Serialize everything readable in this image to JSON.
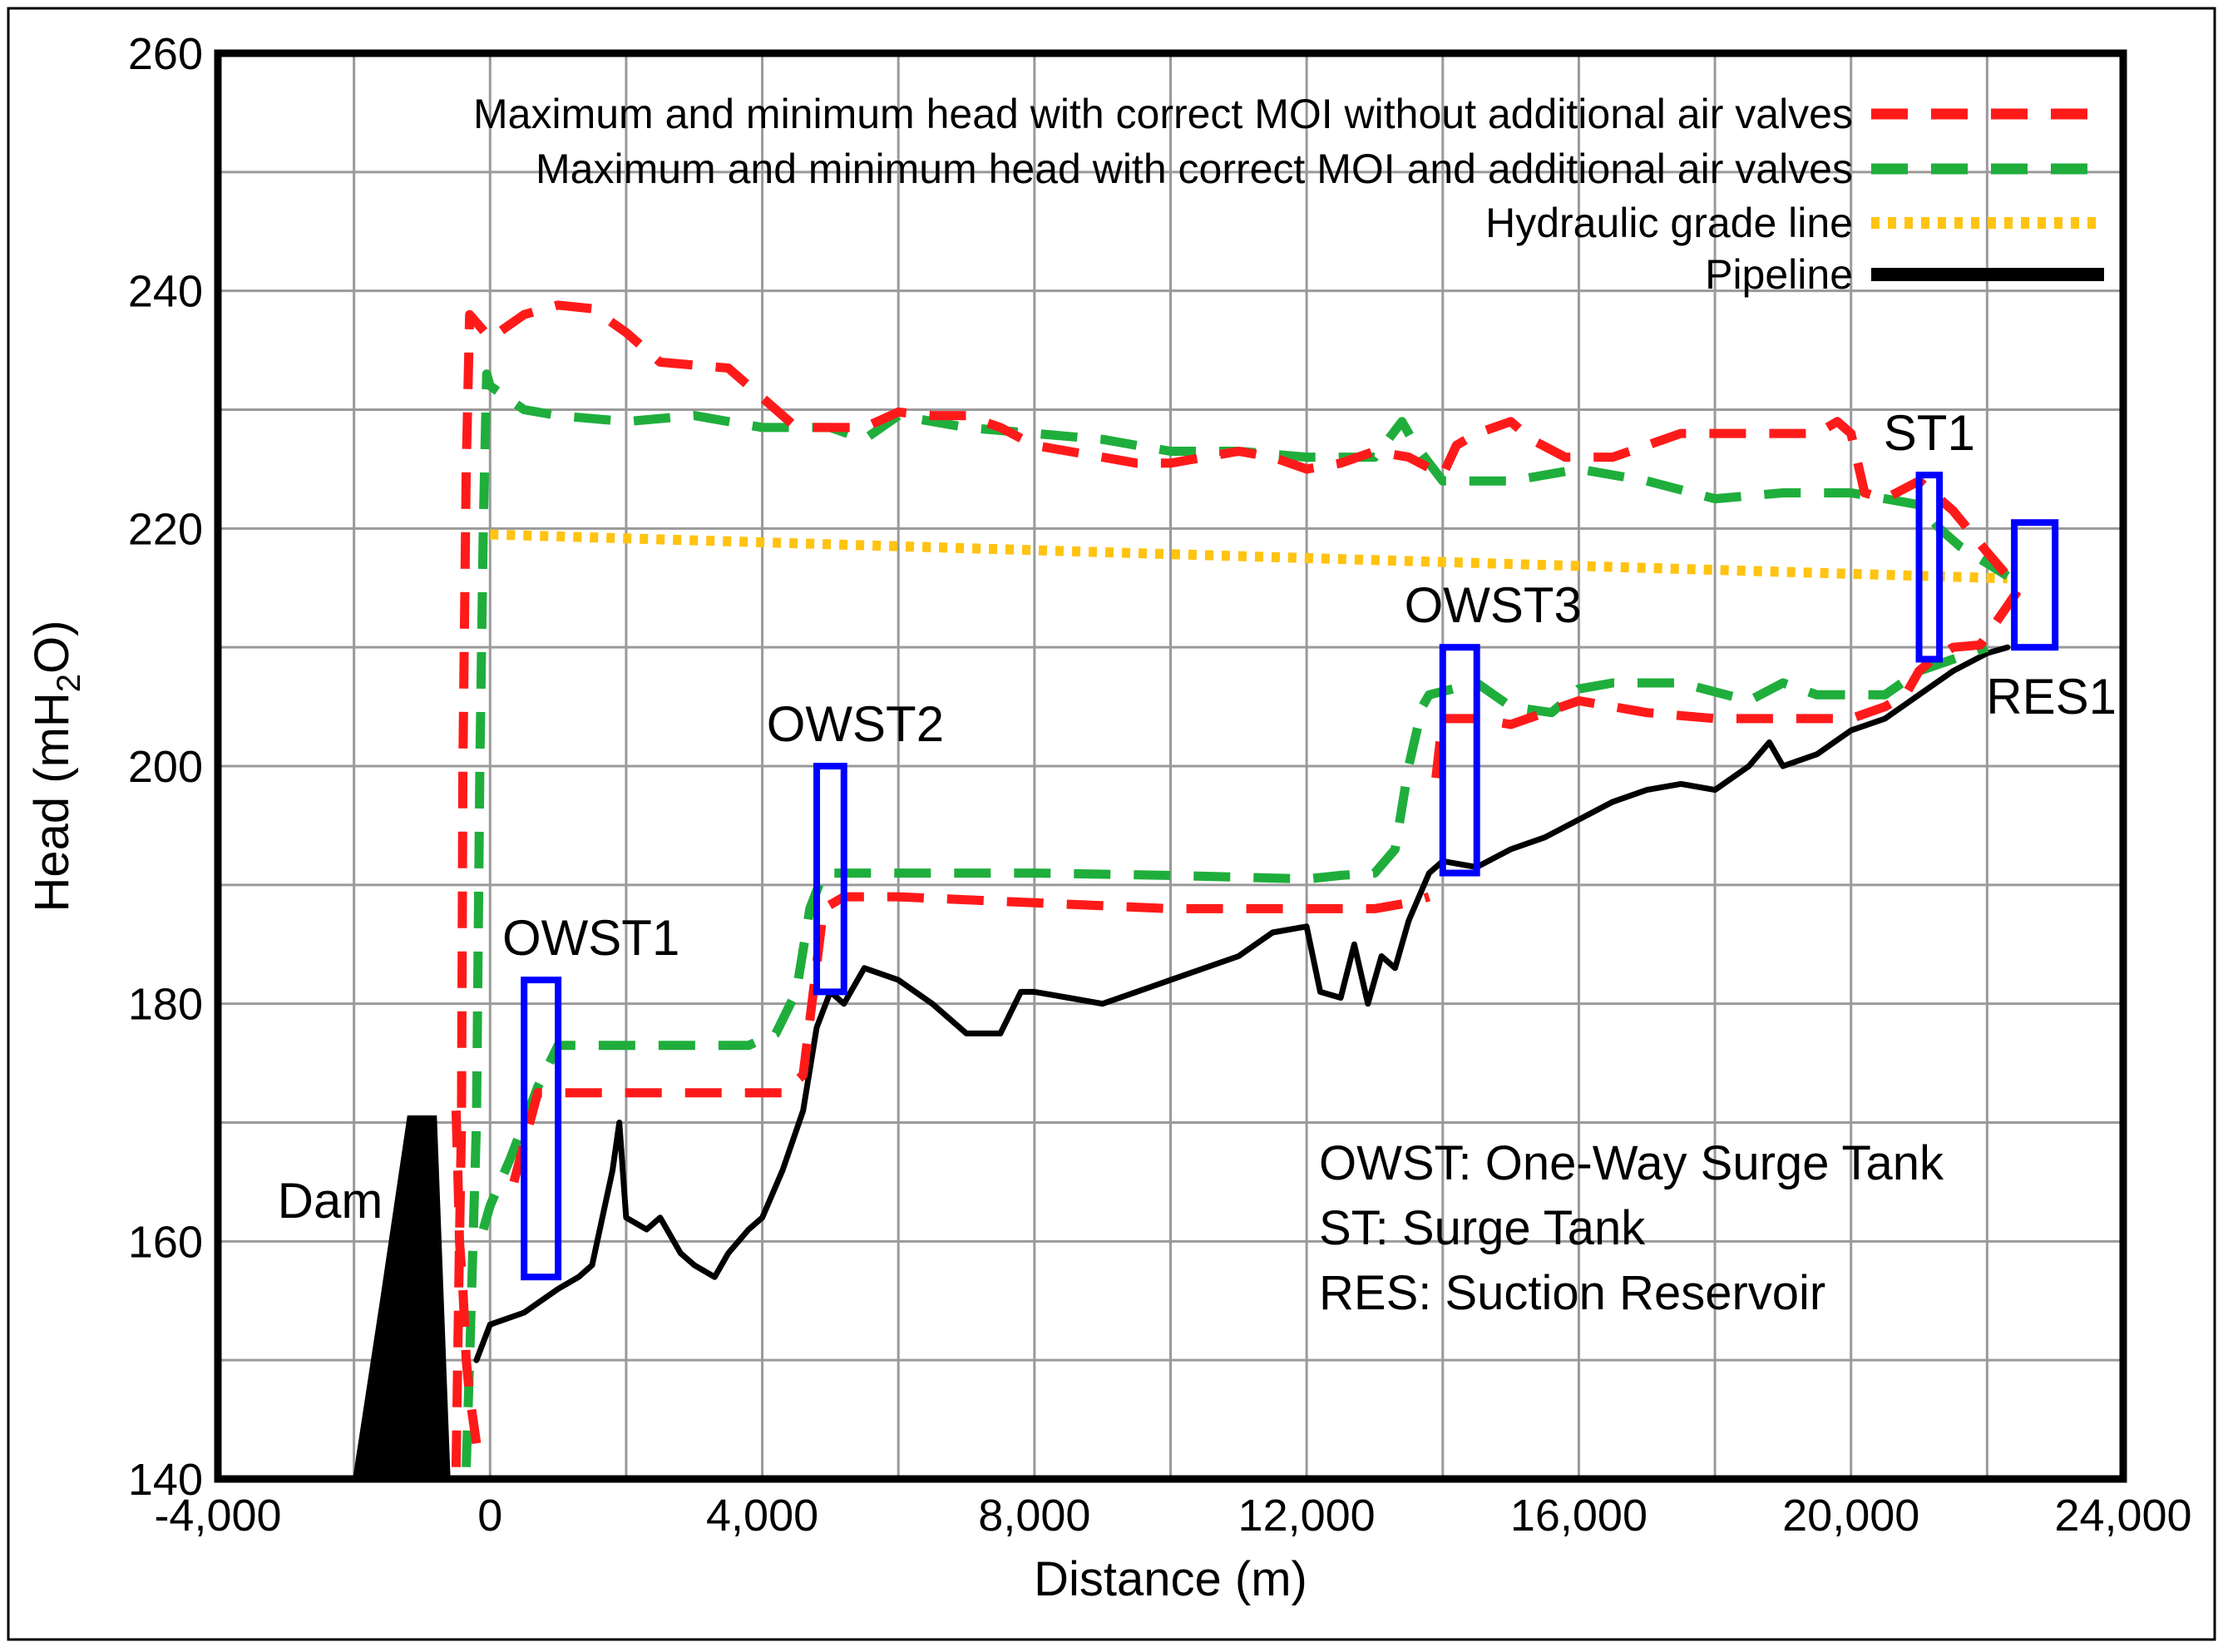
{
  "chart_data": {
    "type": "line",
    "xlabel": "Distance (m)",
    "ylabel_main": "Head (mH",
    "ylabel_sub": "2",
    "ylabel_end": "O)",
    "xlim": [
      -4000,
      24000
    ],
    "ylim": [
      140,
      260
    ],
    "x_ticks": [
      -4000,
      0,
      4000,
      8000,
      12000,
      16000,
      20000,
      24000
    ],
    "x_tick_labels": [
      "-4,000",
      "0",
      "4,000",
      "8,000",
      "12,000",
      "16,000",
      "20,000",
      "24,000"
    ],
    "y_ticks": [
      140,
      160,
      180,
      200,
      220,
      240,
      260
    ],
    "y_tick_labels": [
      "140",
      "160",
      "180",
      "200",
      "220",
      "240",
      "260"
    ],
    "x_grid_step": 2000,
    "y_grid_step": 10,
    "grid": true,
    "legend_position": "top-right",
    "series": [
      {
        "name": "Maximum and minimum head with correct MOI without additional air valves",
        "color": "#ff1a1a",
        "style": "dashed",
        "segments": [
          [
            [
              -500,
              141
            ],
            [
              -450,
              160
            ],
            [
              -420,
              170
            ],
            [
              -400,
              200
            ],
            [
              -350,
              225
            ],
            [
              -300,
              238
            ],
            [
              0,
              236
            ],
            [
              500,
              238
            ],
            [
              1000,
              238.8
            ],
            [
              1500,
              238.5
            ],
            [
              2000,
              236.5
            ],
            [
              2500,
              234
            ],
            [
              3500,
              233.5
            ],
            [
              4000,
              231
            ],
            [
              4500,
              228.5
            ],
            [
              5000,
              228.5
            ],
            [
              5500,
              228.5
            ],
            [
              6000,
              229.8
            ],
            [
              6500,
              229.5
            ],
            [
              7000,
              229.5
            ],
            [
              7500,
              228.5
            ],
            [
              8000,
              227
            ],
            [
              8500,
              226.5
            ],
            [
              9000,
              226
            ],
            [
              9500,
              225.5
            ],
            [
              10000,
              225.5
            ],
            [
              10500,
              226
            ],
            [
              11000,
              226.5
            ],
            [
              11500,
              226
            ],
            [
              12000,
              225
            ],
            [
              12500,
              225.5
            ],
            [
              13000,
              226.5
            ],
            [
              13500,
              226
            ],
            [
              14000,
              224.5
            ],
            [
              14200,
              227
            ],
            [
              14500,
              228
            ],
            [
              15000,
              229
            ],
            [
              15300,
              227.5
            ],
            [
              15800,
              226
            ],
            [
              16500,
              226
            ],
            [
              17000,
              227
            ],
            [
              17500,
              228
            ],
            [
              18500,
              228
            ],
            [
              19500,
              228
            ],
            [
              19800,
              229
            ],
            [
              20000,
              228
            ],
            [
              20200,
              223
            ],
            [
              20500,
              222.5
            ],
            [
              21000,
              224
            ],
            [
              21500,
              221.5
            ],
            [
              22000,
              218
            ],
            [
              22300,
              216
            ]
          ],
          [
            [
              -500,
              171
            ],
            [
              -470,
              165
            ],
            [
              -450,
              160
            ],
            [
              -400,
              156
            ],
            [
              -350,
              150
            ],
            [
              -300,
              147
            ],
            [
              -250,
              145
            ],
            [
              -200,
              143
            ]
          ],
          [
            [
              350,
              165
            ],
            [
              700,
              172.5
            ],
            [
              1500,
              172.5
            ],
            [
              2500,
              172.5
            ],
            [
              3500,
              172.5
            ],
            [
              4300,
              172.5
            ],
            [
              4600,
              174
            ],
            [
              4900,
              188
            ],
            [
              5200,
              189
            ],
            [
              6000,
              189
            ],
            [
              8000,
              188.5
            ],
            [
              10000,
              188
            ],
            [
              12000,
              188
            ],
            [
              13000,
              188
            ],
            [
              13500,
              188.5
            ],
            [
              13800,
              189
            ]
          ],
          [
            [
              13900,
              199
            ],
            [
              14000,
              204
            ],
            [
              14500,
              204
            ],
            [
              15000,
              203.5
            ],
            [
              16000,
              205.5
            ],
            [
              17000,
              204.5
            ],
            [
              18000,
              204
            ],
            [
              19000,
              204
            ],
            [
              20000,
              204
            ],
            [
              20500,
              205
            ],
            [
              20800,
              206
            ],
            [
              21000,
              208
            ],
            [
              21200,
              209
            ],
            [
              21500,
              210
            ],
            [
              21900,
              210.2
            ],
            [
              22300,
              213.5
            ],
            [
              22600,
              216
            ]
          ]
        ]
      },
      {
        "name": "Maximum and minimum head with correct MOI and additional air valves",
        "color": "#1fae3c",
        "style": "dashed",
        "segments": [
          [
            [
              -350,
              141
            ],
            [
              -300,
              150
            ],
            [
              -200,
              170
            ],
            [
              -150,
              200
            ],
            [
              -100,
              220
            ],
            [
              -50,
              233
            ],
            [
              0,
              232
            ],
            [
              500,
              230
            ],
            [
              1000,
              229.5
            ],
            [
              2000,
              229
            ],
            [
              3000,
              229.5
            ],
            [
              4000,
              228.5
            ],
            [
              5000,
              228.5
            ],
            [
              5500,
              227.5
            ],
            [
              6000,
              229.5
            ],
            [
              7000,
              228.5
            ],
            [
              8000,
              228
            ],
            [
              9000,
              227.5
            ],
            [
              10000,
              226.5
            ],
            [
              11000,
              226.5
            ],
            [
              12000,
              226
            ],
            [
              13000,
              226
            ],
            [
              13400,
              229
            ],
            [
              13600,
              227
            ],
            [
              14000,
              224
            ],
            [
              14500,
              224
            ],
            [
              15000,
              224
            ],
            [
              16000,
              225
            ],
            [
              17000,
              224
            ],
            [
              18000,
              222.5
            ],
            [
              19000,
              223
            ],
            [
              20000,
              223
            ],
            [
              20500,
              222.5
            ],
            [
              21000,
              222
            ],
            [
              21300,
              220
            ],
            [
              21600,
              218.5
            ],
            [
              22300,
              216
            ]
          ],
          [
            [
              -100,
              161
            ],
            [
              0,
              163
            ],
            [
              300,
              167
            ],
            [
              700,
              173
            ],
            [
              1000,
              176.5
            ],
            [
              2000,
              176.5
            ],
            [
              3000,
              176.5
            ],
            [
              3800,
              176.5
            ],
            [
              4200,
              177.5
            ],
            [
              4500,
              181
            ],
            [
              4700,
              188
            ],
            [
              4900,
              191
            ],
            [
              6000,
              191
            ],
            [
              8000,
              191
            ],
            [
              10000,
              190.8
            ],
            [
              12000,
              190.5
            ],
            [
              12500,
              190.8
            ],
            [
              13000,
              191
            ],
            [
              13300,
              193
            ],
            [
              13500,
              200
            ],
            [
              13700,
              205
            ],
            [
              13800,
              206
            ],
            [
              14500,
              207
            ],
            [
              15000,
              205
            ],
            [
              15600,
              204.5
            ],
            [
              16000,
              206.5
            ],
            [
              16500,
              207
            ],
            [
              17500,
              207
            ],
            [
              18500,
              205.5
            ],
            [
              19000,
              207
            ],
            [
              19500,
              206
            ],
            [
              20500,
              206
            ],
            [
              21000,
              208
            ],
            [
              21500,
              209
            ],
            [
              22000,
              210
            ]
          ]
        ]
      },
      {
        "name": "Hydraulic grade line",
        "color": "#ffc312",
        "style": "dotted",
        "segments": [
          [
            [
              0,
              219.5
            ],
            [
              22300,
              215.8
            ]
          ]
        ]
      },
      {
        "name": "Pipeline",
        "color": "#000000",
        "style": "solid",
        "segments": [
          [
            [
              -200,
              150
            ],
            [
              0,
              153
            ],
            [
              500,
              154
            ],
            [
              1000,
              156
            ],
            [
              1300,
              157
            ],
            [
              1500,
              158
            ],
            [
              1800,
              166
            ],
            [
              1900,
              170
            ],
            [
              2000,
              162
            ],
            [
              2300,
              161
            ],
            [
              2500,
              162
            ],
            [
              2800,
              159
            ],
            [
              3000,
              158
            ],
            [
              3300,
              157
            ],
            [
              3500,
              159
            ],
            [
              3800,
              161
            ],
            [
              4000,
              162
            ],
            [
              4300,
              166
            ],
            [
              4600,
              171
            ],
            [
              4800,
              178
            ],
            [
              5000,
              181
            ],
            [
              5200,
              180
            ],
            [
              5500,
              183
            ],
            [
              6000,
              182
            ],
            [
              6500,
              180
            ],
            [
              7000,
              177.5
            ],
            [
              7500,
              177.5
            ],
            [
              7800,
              181
            ],
            [
              8000,
              181
            ],
            [
              8500,
              180.5
            ],
            [
              9000,
              180
            ],
            [
              9500,
              181
            ],
            [
              10000,
              182
            ],
            [
              11000,
              184
            ],
            [
              11500,
              186
            ],
            [
              12000,
              186.5
            ],
            [
              12200,
              181
            ],
            [
              12500,
              180.5
            ],
            [
              12700,
              185
            ],
            [
              12900,
              180
            ],
            [
              13100,
              184
            ],
            [
              13300,
              183
            ],
            [
              13500,
              187
            ],
            [
              13800,
              191
            ],
            [
              14000,
              192
            ],
            [
              14500,
              191.5
            ],
            [
              15000,
              193
            ],
            [
              15500,
              194
            ],
            [
              16000,
              195.5
            ],
            [
              16500,
              197
            ],
            [
              17000,
              198
            ],
            [
              17500,
              198.5
            ],
            [
              18000,
              198
            ],
            [
              18500,
              200
            ],
            [
              18800,
              202
            ],
            [
              19000,
              200
            ],
            [
              19500,
              201
            ],
            [
              20000,
              203
            ],
            [
              20500,
              204
            ],
            [
              21000,
              206
            ],
            [
              21500,
              208
            ],
            [
              22000,
              209.5
            ],
            [
              22300,
              210
            ]
          ]
        ]
      }
    ],
    "dam": {
      "label": "Dam",
      "color": "#000000",
      "outline": [
        [
          -2000,
          140
        ],
        [
          -1600,
          155
        ],
        [
          -1200,
          170.5
        ],
        [
          -800,
          170.5
        ],
        [
          -600,
          140
        ]
      ]
    },
    "structures": [
      {
        "label": "OWST1",
        "x": [
          500,
          1000
        ],
        "y": [
          157,
          182
        ]
      },
      {
        "label": "OWST2",
        "x": [
          4800,
          5200
        ],
        "y": [
          181,
          200
        ]
      },
      {
        "label": "OWST3",
        "x": [
          14000,
          14500
        ],
        "y": [
          191,
          210
        ]
      },
      {
        "label": "ST1",
        "x": [
          21000,
          21300
        ],
        "y": [
          209,
          224.5
        ]
      },
      {
        "label": "RES1",
        "x": [
          22400,
          23000
        ],
        "y": [
          210,
          220.5
        ]
      }
    ],
    "structure_color": "#0000ff",
    "notes": [
      "OWST: One-Way Surge Tank",
      "ST: Surge Tank",
      "RES: Suction Reservoir"
    ]
  }
}
